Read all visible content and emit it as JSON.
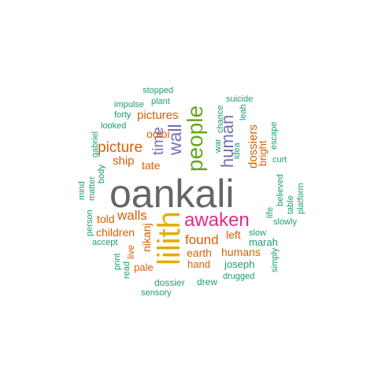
{
  "colors": {
    "grey": "#666666",
    "yellow": "#e6ab02",
    "pink": "#e7298a",
    "green": "#66a61e",
    "purple": "#7570b3",
    "orange": "#d95f02",
    "teal": "#1b9e77"
  },
  "words": [
    {
      "text": "oankali",
      "color": "grey",
      "weight": 10
    },
    {
      "text": "lilith",
      "color": "yellow",
      "weight": 8
    },
    {
      "text": "awaken",
      "color": "pink",
      "weight": 6
    },
    {
      "text": "people",
      "color": "green",
      "weight": 6
    },
    {
      "text": "wall",
      "color": "purple",
      "weight": 5
    },
    {
      "text": "human",
      "color": "purple",
      "weight": 5
    },
    {
      "text": "time",
      "color": "purple",
      "weight": 5
    },
    {
      "text": "picture",
      "color": "orange",
      "weight": 4
    },
    {
      "text": "walls",
      "color": "orange",
      "weight": 4
    },
    {
      "text": "found",
      "color": "orange",
      "weight": 4
    },
    {
      "text": "pictures",
      "color": "orange",
      "weight": 3
    },
    {
      "text": "ship",
      "color": "orange",
      "weight": 3
    },
    {
      "text": "tate",
      "color": "orange",
      "weight": 3
    },
    {
      "text": "ooloi",
      "color": "orange",
      "weight": 3
    },
    {
      "text": "dossiers",
      "color": "orange",
      "weight": 3
    },
    {
      "text": "bright",
      "color": "orange",
      "weight": 3
    },
    {
      "text": "earth",
      "color": "orange",
      "weight": 3
    },
    {
      "text": "humans",
      "color": "orange",
      "weight": 3
    },
    {
      "text": "children",
      "color": "orange",
      "weight": 3
    },
    {
      "text": "nikanj",
      "color": "orange",
      "weight": 3
    },
    {
      "text": "told",
      "color": "orange",
      "weight": 3
    },
    {
      "text": "left",
      "color": "orange",
      "weight": 3
    },
    {
      "text": "hand",
      "color": "orange",
      "weight": 3
    },
    {
      "text": "live",
      "color": "orange",
      "weight": 3
    },
    {
      "text": "pale",
      "color": "orange",
      "weight": 3
    },
    {
      "text": "stopped",
      "color": "teal",
      "weight": 1
    },
    {
      "text": "impulse",
      "color": "teal",
      "weight": 1
    },
    {
      "text": "plant",
      "color": "teal",
      "weight": 1
    },
    {
      "text": "forty",
      "color": "teal",
      "weight": 1
    },
    {
      "text": "looked",
      "color": "teal",
      "weight": 1
    },
    {
      "text": "gabriel",
      "color": "teal",
      "weight": 1
    },
    {
      "text": "body",
      "color": "teal",
      "weight": 1
    },
    {
      "text": "matter",
      "color": "teal",
      "weight": 1
    },
    {
      "text": "mind",
      "color": "teal",
      "weight": 1
    },
    {
      "text": "person",
      "color": "teal",
      "weight": 1
    },
    {
      "text": "accept",
      "color": "teal",
      "weight": 1
    },
    {
      "text": "print",
      "color": "teal",
      "weight": 1
    },
    {
      "text": "read",
      "color": "teal",
      "weight": 1
    },
    {
      "text": "chance",
      "color": "teal",
      "weight": 1
    },
    {
      "text": "war",
      "color": "teal",
      "weight": 1
    },
    {
      "text": "suicide",
      "color": "teal",
      "weight": 1
    },
    {
      "text": "leah",
      "color": "teal",
      "weight": 1
    },
    {
      "text": "idea",
      "color": "teal",
      "weight": 1
    },
    {
      "text": "escape",
      "color": "teal",
      "weight": 1
    },
    {
      "text": "curt",
      "color": "teal",
      "weight": 1
    },
    {
      "text": "believed",
      "color": "teal",
      "weight": 1
    },
    {
      "text": "table",
      "color": "teal",
      "weight": 1
    },
    {
      "text": "platform",
      "color": "teal",
      "weight": 1
    },
    {
      "text": "life",
      "color": "teal",
      "weight": 1
    },
    {
      "text": "slowly",
      "color": "teal",
      "weight": 1
    },
    {
      "text": "slow",
      "color": "teal",
      "weight": 1
    },
    {
      "text": "marah",
      "color": "teal",
      "weight": 1
    },
    {
      "text": "simply",
      "color": "teal",
      "weight": 1
    },
    {
      "text": "joseph",
      "color": "teal",
      "weight": 1
    },
    {
      "text": "drugged",
      "color": "teal",
      "weight": 1
    },
    {
      "text": "dossier",
      "color": "teal",
      "weight": 1
    },
    {
      "text": "drew",
      "color": "teal",
      "weight": 1
    },
    {
      "text": "sensory",
      "color": "teal",
      "weight": 1
    }
  ]
}
